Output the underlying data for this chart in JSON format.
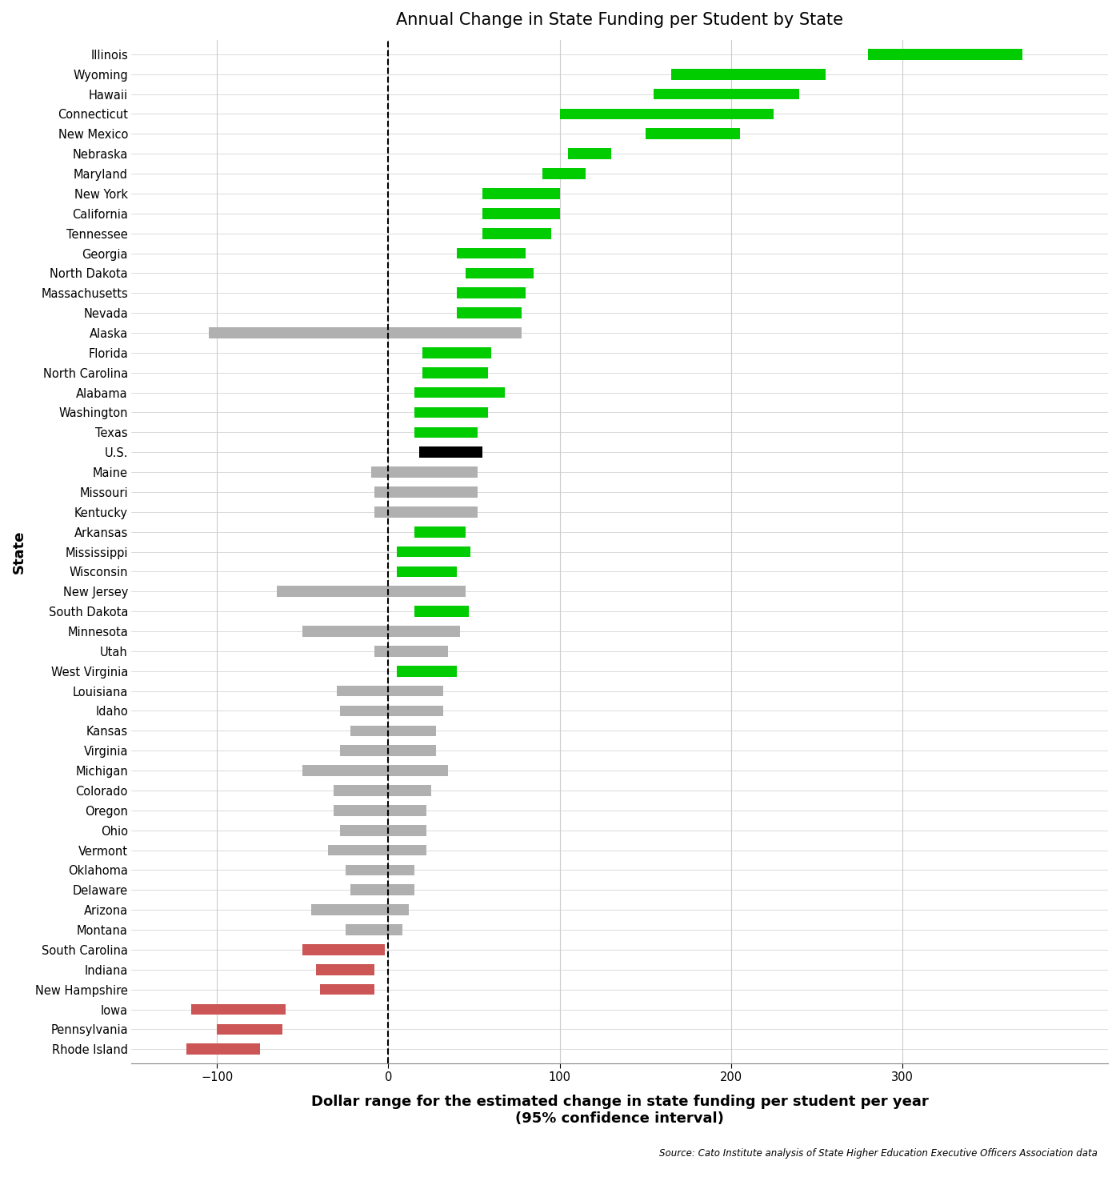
{
  "title": "Annual Change in State Funding per Student by State",
  "xlabel": "Dollar range for the estimated change in state funding per student per year\n(95% confidence interval)",
  "ylabel": "State",
  "source": "Source: Cato Institute analysis of State Higher Education Executive Officers Association data",
  "xlim": [
    -150,
    420
  ],
  "xticks": [
    -100,
    0,
    100,
    200,
    300
  ],
  "states": [
    "Illinois",
    "Wyoming",
    "Hawaii",
    "Connecticut",
    "New Mexico",
    "Nebraska",
    "Maryland",
    "New York",
    "California",
    "Tennessee",
    "Georgia",
    "North Dakota",
    "Massachusetts",
    "Nevada",
    "Alaska",
    "Florida",
    "North Carolina",
    "Alabama",
    "Washington",
    "Texas",
    "U.S.",
    "Maine",
    "Missouri",
    "Kentucky",
    "Arkansas",
    "Mississippi",
    "Wisconsin",
    "New Jersey",
    "South Dakota",
    "Minnesota",
    "Utah",
    "West Virginia",
    "Louisiana",
    "Idaho",
    "Kansas",
    "Virginia",
    "Michigan",
    "Colorado",
    "Oregon",
    "Ohio",
    "Vermont",
    "Oklahoma",
    "Delaware",
    "Arizona",
    "Montana",
    "South Carolina",
    "Indiana",
    "New Hampshire",
    "Iowa",
    "Pennsylvania",
    "Rhode Island"
  ],
  "low": [
    280,
    165,
    155,
    100,
    150,
    105,
    90,
    55,
    55,
    55,
    40,
    45,
    40,
    40,
    -105,
    20,
    20,
    15,
    15,
    15,
    18,
    -10,
    -8,
    -8,
    15,
    5,
    5,
    -65,
    15,
    -50,
    -8,
    5,
    -30,
    -28,
    -22,
    -28,
    -50,
    -32,
    -32,
    -28,
    -35,
    -25,
    -22,
    -45,
    -25,
    -50,
    -42,
    -40,
    -115,
    -100,
    -118
  ],
  "high": [
    370,
    255,
    240,
    225,
    205,
    130,
    115,
    100,
    100,
    95,
    80,
    85,
    80,
    78,
    78,
    60,
    58,
    68,
    58,
    52,
    55,
    52,
    52,
    52,
    45,
    48,
    40,
    45,
    47,
    42,
    35,
    40,
    32,
    32,
    28,
    28,
    35,
    25,
    22,
    22,
    22,
    15,
    15,
    12,
    8,
    -2,
    -8,
    -8,
    -60,
    -62,
    -75
  ],
  "colors": [
    "green",
    "green",
    "green",
    "green",
    "green",
    "green",
    "green",
    "green",
    "green",
    "green",
    "green",
    "green",
    "green",
    "green",
    "gray",
    "green",
    "green",
    "green",
    "green",
    "green",
    "black",
    "gray",
    "gray",
    "gray",
    "green",
    "green",
    "green",
    "gray",
    "green",
    "gray",
    "gray",
    "green",
    "gray",
    "gray",
    "gray",
    "gray",
    "gray",
    "gray",
    "gray",
    "gray",
    "gray",
    "gray",
    "gray",
    "gray",
    "gray",
    "red",
    "red",
    "red",
    "red",
    "red",
    "red"
  ],
  "bar_height": 0.55,
  "background_color": "#ffffff",
  "grid_color": "#cccccc",
  "green_color": "#00cc00",
  "gray_color": "#b0b0b0",
  "red_color": "#cc5555",
  "black_color": "#000000"
}
